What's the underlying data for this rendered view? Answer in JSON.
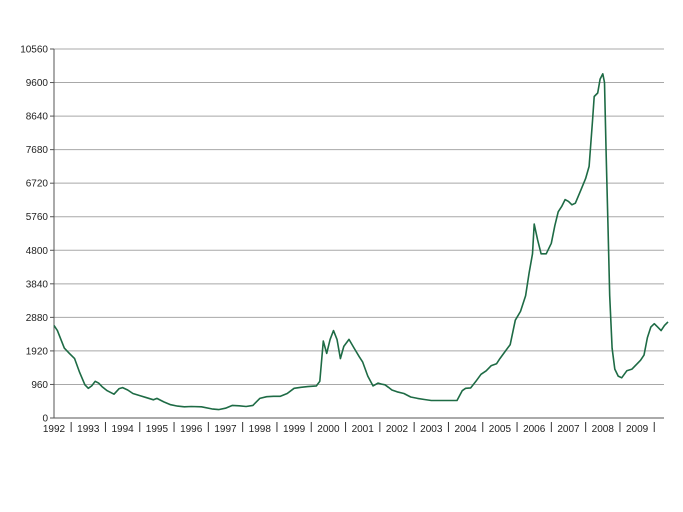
{
  "chart_data": {
    "type": "line",
    "title": "",
    "xlabel": "",
    "ylabel": "",
    "ylim": [
      0,
      10560
    ],
    "xlim": [
      1992,
      2010
    ],
    "grid": true,
    "legend": "none",
    "colors": {
      "line": "#1e6b45",
      "grid": "#a8a8a8",
      "axis": "#555555",
      "text": "#222222"
    },
    "y_ticks": [
      "0",
      "960",
      "1920",
      "2880",
      "3840",
      "4800",
      "5760",
      "6720",
      "7680",
      "8640",
      "9600",
      "10560"
    ],
    "x_tick_labels": [
      "1992",
      "1993",
      "1994",
      "1995",
      "1996",
      "1997",
      "1998",
      "1999",
      "2000",
      "2001",
      "2002",
      "2003",
      "2004",
      "2005",
      "2006",
      "2007",
      "2008",
      "2009"
    ],
    "series": [
      {
        "x": [
          1992.0,
          1992.1,
          1992.2,
          1992.3,
          1992.45,
          1992.6,
          1992.75,
          1992.9,
          1993.0,
          1993.1,
          1993.2,
          1993.3,
          1993.4,
          1993.55,
          1993.75,
          1993.9,
          1994.0,
          1994.15,
          1994.3,
          1994.5,
          1994.7,
          1994.9,
          1995.0,
          1995.2,
          1995.4,
          1995.6,
          1995.8,
          1996.0,
          1996.3,
          1996.6,
          1996.8,
          1997.0,
          1997.2,
          1997.4,
          1997.6,
          1997.8,
          1998.0,
          1998.2,
          1998.4,
          1998.6,
          1998.8,
          1999.0,
          1999.2,
          1999.4,
          1999.55,
          1999.65,
          1999.75,
          1999.85,
          1999.95,
          2000.05,
          2000.15,
          2000.25,
          2000.35,
          2000.45,
          2000.6,
          2000.75,
          2000.9,
          2001.0,
          2001.15,
          2001.3,
          2001.45,
          2001.55,
          2001.65,
          2001.75,
          2001.85,
          2002.0,
          2002.2,
          2002.4,
          2002.6,
          2002.8,
          2003.0,
          2003.2,
          2003.4,
          2003.6,
          2003.75,
          2003.9,
          2004.0,
          2004.15,
          2004.3,
          2004.45,
          2004.6,
          2004.75,
          2004.9,
          2005.0,
          2005.15,
          2005.3,
          2005.45,
          2005.6,
          2005.75,
          2005.85,
          2005.95,
          2006.0,
          2006.1,
          2006.2,
          2006.35,
          2006.5,
          2006.6,
          2006.7,
          2006.8,
          2006.9,
          2007.0,
          2007.1,
          2007.2,
          2007.35,
          2007.5,
          2007.6,
          2007.7,
          2007.75,
          2007.85,
          2007.92,
          2008.0,
          2008.05,
          2008.1,
          2008.15,
          2008.2,
          2008.27,
          2008.35,
          2008.45,
          2008.55,
          2008.7,
          2008.85,
          2009.0,
          2009.1,
          2009.2,
          2009.3,
          2009.4,
          2009.5,
          2009.6,
          2009.7,
          2009.8,
          2009.9
        ],
        "y": [
          2650,
          2500,
          2250,
          2000,
          1850,
          1700,
          1300,
          950,
          850,
          920,
          1050,
          1000,
          900,
          780,
          680,
          840,
          870,
          800,
          700,
          640,
          580,
          520,
          560,
          460,
          380,
          340,
          320,
          330,
          320,
          260,
          240,
          280,
          360,
          350,
          330,
          360,
          560,
          610,
          620,
          620,
          700,
          850,
          880,
          900,
          910,
          920,
          1050,
          2200,
          1850,
          2250,
          2500,
          2250,
          1700,
          2050,
          2250,
          2000,
          1750,
          1600,
          1200,
          920,
          1000,
          970,
          950,
          880,
          800,
          750,
          700,
          600,
          560,
          530,
          500,
          500,
          500,
          500,
          500,
          780,
          850,
          860,
          1050,
          1250,
          1350,
          1500,
          1550,
          1700,
          1900,
          2100,
          2800,
          3050,
          3500,
          4150,
          4700,
          5550,
          5100,
          4700,
          4700,
          5000,
          5500,
          5900,
          6050,
          6250,
          6200,
          6100,
          6150,
          6500,
          6850,
          7200,
          8500,
          9200,
          9300,
          9700,
          9850,
          9600,
          7500,
          5600,
          3500,
          2000,
          1400,
          1200,
          1150,
          1350,
          1400,
          1550,
          1650,
          1800,
          2300,
          2600,
          2700,
          2600,
          2500,
          2650,
          2750
        ]
      }
    ]
  }
}
